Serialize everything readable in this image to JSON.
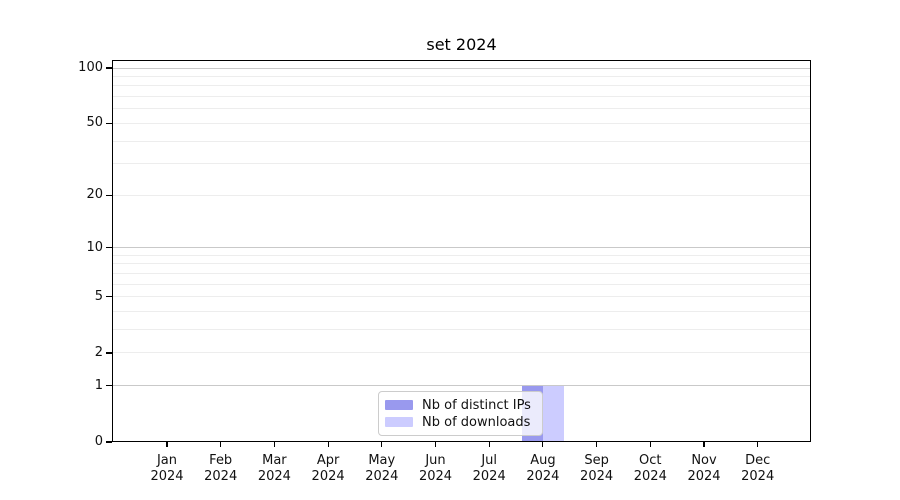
{
  "chart_data": {
    "type": "bar",
    "title": "set 2024",
    "categories": [
      "Jan 2024",
      "Feb 2024",
      "Mar 2024",
      "Apr 2024",
      "May 2024",
      "Jun 2024",
      "Jul 2024",
      "Aug 2024",
      "Sep 2024",
      "Oct 2024",
      "Nov 2024",
      "Dec 2024"
    ],
    "series": [
      {
        "name": "Nb of distinct IPs",
        "color": "#9999ee",
        "values": [
          0,
          0,
          0,
          0,
          0,
          0,
          0,
          1,
          0,
          0,
          0,
          0
        ]
      },
      {
        "name": "Nb of downloads",
        "color": "#ccccff",
        "values": [
          0,
          0,
          0,
          0,
          0,
          0,
          0,
          1,
          0,
          0,
          0,
          0
        ]
      }
    ],
    "y_axis": {
      "scale": "log1p",
      "ticks": [
        0,
        1,
        2,
        5,
        10,
        20,
        50,
        100
      ],
      "major_gridlines": [
        1,
        10,
        100
      ],
      "minor_gridlines": [
        2,
        3,
        4,
        5,
        6,
        7,
        8,
        9,
        20,
        30,
        40,
        50,
        60,
        70,
        80,
        90
      ],
      "ylim": [
        0,
        110.5
      ]
    },
    "legend": {
      "position": "lower center",
      "items": [
        "Nb of distinct IPs",
        "Nb of downloads"
      ]
    },
    "grid": true
  },
  "colors": {
    "background": "#ffffff",
    "spine": "#000000",
    "grid_major": "#c9c9c9",
    "grid_minor": "#ededed",
    "text": "#111111",
    "legend_border": "#cccccc",
    "bar_distinct_ips": "#9999ee",
    "bar_downloads": "#ccccff"
  }
}
